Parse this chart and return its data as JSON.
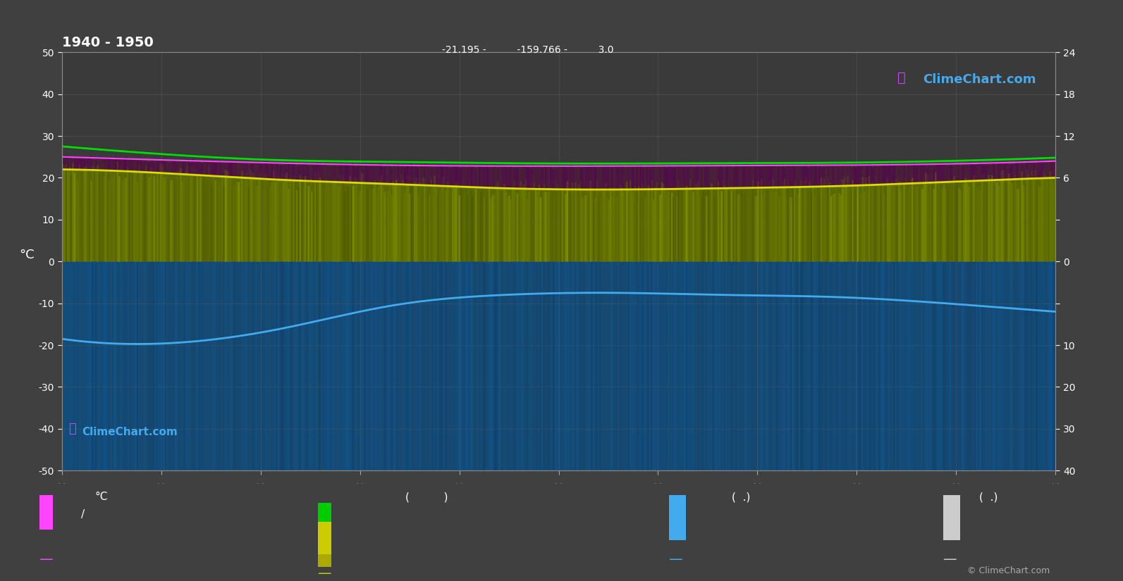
{
  "title_left": "1940 - 1950",
  "title_center": "-21.195 -          -159.766 -          3.0",
  "bg_color": "#404040",
  "plot_bg_color": "#3a3a3a",
  "grid_color": "#606060",
  "n_points": 500,
  "green_line": [
    27.5,
    25.5,
    24.2,
    23.8,
    23.5,
    23.4,
    23.5,
    23.6,
    24.0,
    24.8
  ],
  "magenta_line": [
    25.0,
    24.2,
    23.5,
    23.0,
    22.8,
    22.8,
    22.9,
    23.0,
    23.3,
    24.0
  ],
  "yellow_line": [
    22.0,
    21.0,
    19.5,
    18.5,
    17.5,
    17.2,
    17.5,
    18.0,
    19.0,
    20.0
  ],
  "blue_line": [
    -18.5,
    -19.5,
    -16.0,
    -10.5,
    -8.0,
    -7.5,
    -8.0,
    -8.5,
    -10.0,
    -12.0
  ],
  "yellow_fill_color": "#6b7a00",
  "blue_fill_color": "#1e5080",
  "magenta_fill_color": "#6a006a",
  "green_line_color": "#00dd00",
  "magenta_line_color": "#ff44ff",
  "yellow_line_color": "#dddd00",
  "blue_line_color": "#44aaee",
  "copyright": "© ClimeChart.com",
  "stripe_seed": 42
}
